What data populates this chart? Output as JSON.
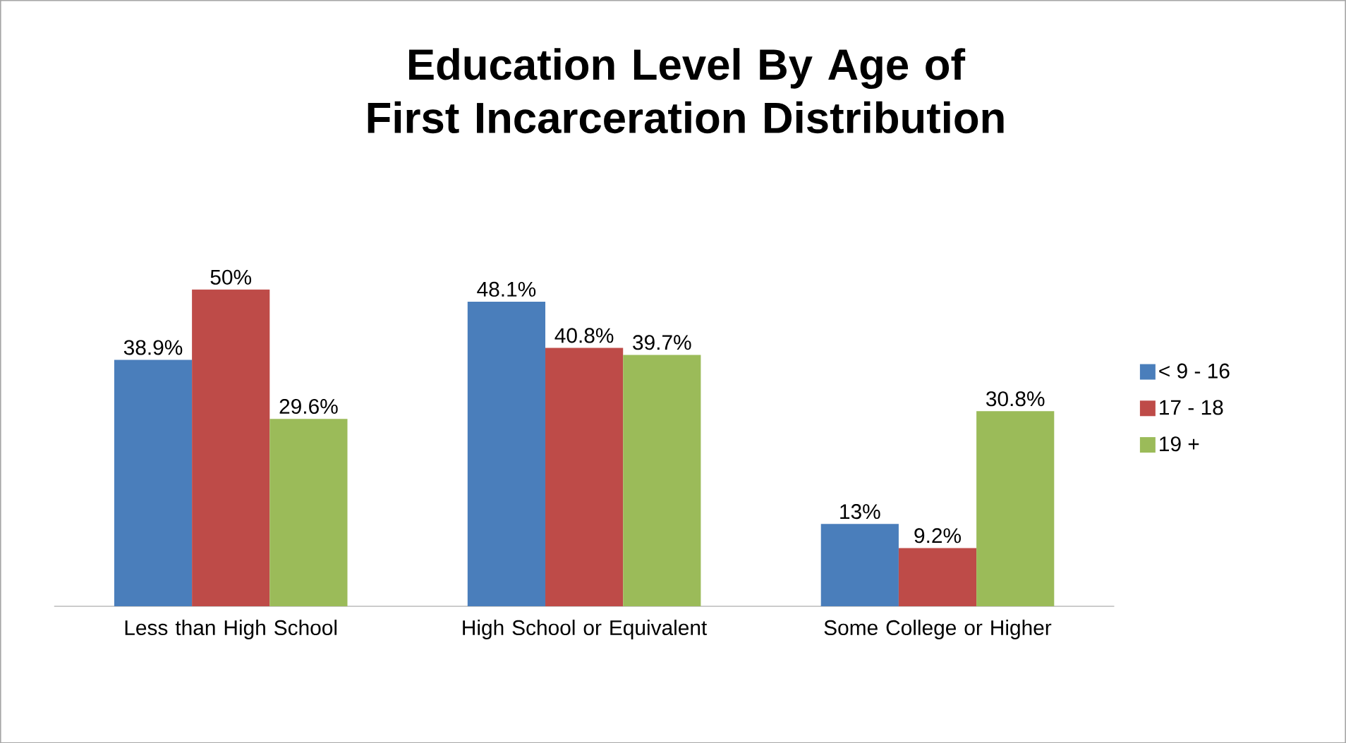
{
  "chart_data": {
    "type": "bar",
    "title": "Education Level By Age of First Incarceration Distribution",
    "categories": [
      "Less than High School",
      "High School or Equivalent",
      "Some College or Higher"
    ],
    "series": [
      {
        "name": "< 9 - 16",
        "color": "#4a7ebb",
        "values": [
          38.9,
          48.1,
          13
        ],
        "value_labels": [
          "38.9%",
          "48.1%",
          "13%"
        ]
      },
      {
        "name": "17 - 18",
        "color": "#be4b48",
        "values": [
          50,
          40.8,
          9.2
        ],
        "value_labels": [
          "50%",
          "40.8%",
          "9.2%"
        ]
      },
      {
        "name": "19 +",
        "color": "#9bbb59",
        "values": [
          29.6,
          39.7,
          30.8
        ],
        "value_labels": [
          "29.6%",
          "39.7%",
          "30.8%"
        ]
      }
    ],
    "legend": "right",
    "grid": false
  }
}
